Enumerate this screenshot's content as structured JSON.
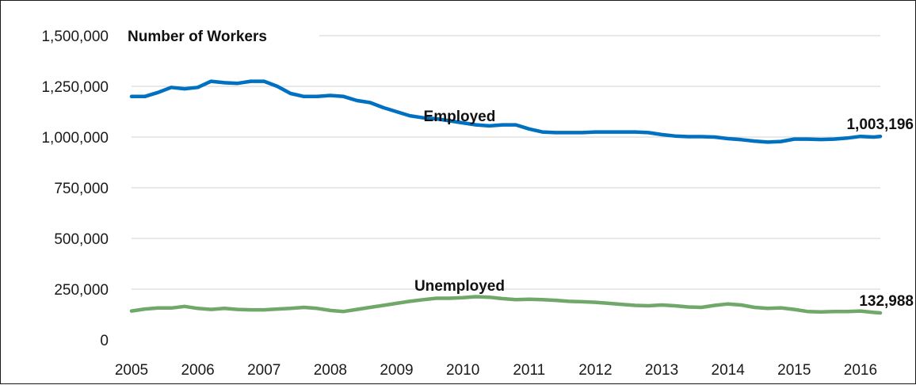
{
  "chart_data": {
    "type": "line",
    "title": "Number of Workers",
    "xlabel": "",
    "ylabel": "",
    "xlim": [
      2005,
      2016.3
    ],
    "ylim": [
      0,
      1500000
    ],
    "y_ticks": [
      0,
      250000,
      500000,
      750000,
      1000000,
      1250000,
      1500000
    ],
    "y_tick_labels": [
      "0",
      "250,000",
      "500,000",
      "750,000",
      "1,000,000",
      "1,250,000",
      "1,500,000"
    ],
    "x_ticks": [
      2005,
      2006,
      2007,
      2008,
      2009,
      2010,
      2011,
      2012,
      2013,
      2014,
      2015,
      2016
    ],
    "x_tick_labels": [
      "2005",
      "2006",
      "2007",
      "2008",
      "2009",
      "2010",
      "2011",
      "2012",
      "2013",
      "2014",
      "2015",
      "2016"
    ],
    "grid": "horizontal",
    "legend": "none",
    "series": [
      {
        "name": "Employed",
        "color": "#0070C0",
        "end_label": "1,003,196",
        "x": [
          2005.0,
          2005.2,
          2005.4,
          2005.6,
          2005.8,
          2006.0,
          2006.2,
          2006.4,
          2006.6,
          2006.8,
          2007.0,
          2007.2,
          2007.4,
          2007.6,
          2007.8,
          2008.0,
          2008.2,
          2008.4,
          2008.6,
          2008.8,
          2009.0,
          2009.2,
          2009.4,
          2009.6,
          2009.8,
          2010.0,
          2010.2,
          2010.4,
          2010.6,
          2010.8,
          2011.0,
          2011.2,
          2011.4,
          2011.6,
          2011.8,
          2012.0,
          2012.2,
          2012.4,
          2012.6,
          2012.8,
          2013.0,
          2013.2,
          2013.4,
          2013.6,
          2013.8,
          2014.0,
          2014.2,
          2014.4,
          2014.6,
          2014.8,
          2015.0,
          2015.2,
          2015.4,
          2015.6,
          2015.8,
          2016.0,
          2016.2,
          2016.3
        ],
        "y": [
          1200000,
          1200000,
          1220000,
          1245000,
          1238000,
          1245000,
          1275000,
          1268000,
          1265000,
          1275000,
          1275000,
          1250000,
          1215000,
          1200000,
          1200000,
          1205000,
          1200000,
          1180000,
          1170000,
          1145000,
          1125000,
          1105000,
          1095000,
          1090000,
          1080000,
          1070000,
          1060000,
          1055000,
          1060000,
          1060000,
          1040000,
          1025000,
          1022000,
          1022000,
          1022000,
          1025000,
          1025000,
          1025000,
          1025000,
          1022000,
          1012000,
          1005000,
          1002000,
          1002000,
          1000000,
          992000,
          987000,
          980000,
          975000,
          978000,
          990000,
          990000,
          988000,
          990000,
          995000,
          1003000,
          1000000,
          1003196
        ]
      },
      {
        "name": "Unemployed",
        "color": "#70A86A",
        "end_label": "132,988",
        "x": [
          2005.0,
          2005.2,
          2005.4,
          2005.6,
          2005.8,
          2006.0,
          2006.2,
          2006.4,
          2006.6,
          2006.8,
          2007.0,
          2007.2,
          2007.4,
          2007.6,
          2007.8,
          2008.0,
          2008.2,
          2008.4,
          2008.6,
          2008.8,
          2009.0,
          2009.2,
          2009.4,
          2009.6,
          2009.8,
          2010.0,
          2010.2,
          2010.4,
          2010.6,
          2010.8,
          2011.0,
          2011.2,
          2011.4,
          2011.6,
          2011.8,
          2012.0,
          2012.2,
          2012.4,
          2012.6,
          2012.8,
          2013.0,
          2013.2,
          2013.4,
          2013.6,
          2013.8,
          2014.0,
          2014.2,
          2014.4,
          2014.6,
          2014.8,
          2015.0,
          2015.2,
          2015.4,
          2015.6,
          2015.8,
          2016.0,
          2016.2,
          2016.3
        ],
        "y": [
          142000,
          152000,
          157000,
          157000,
          165000,
          155000,
          150000,
          155000,
          150000,
          148000,
          148000,
          152000,
          155000,
          160000,
          155000,
          145000,
          140000,
          150000,
          160000,
          170000,
          180000,
          190000,
          198000,
          205000,
          205000,
          208000,
          213000,
          210000,
          203000,
          198000,
          200000,
          198000,
          195000,
          190000,
          188000,
          185000,
          180000,
          175000,
          170000,
          168000,
          172000,
          168000,
          162000,
          160000,
          170000,
          177000,
          172000,
          160000,
          155000,
          158000,
          150000,
          140000,
          138000,
          140000,
          140000,
          142000,
          135000,
          132988
        ]
      }
    ],
    "annotations": [
      {
        "text": "Employed",
        "x": 2009.95,
        "y": 1105000
      },
      {
        "text": "Unemployed",
        "x": 2009.95,
        "y": 270000
      }
    ]
  }
}
